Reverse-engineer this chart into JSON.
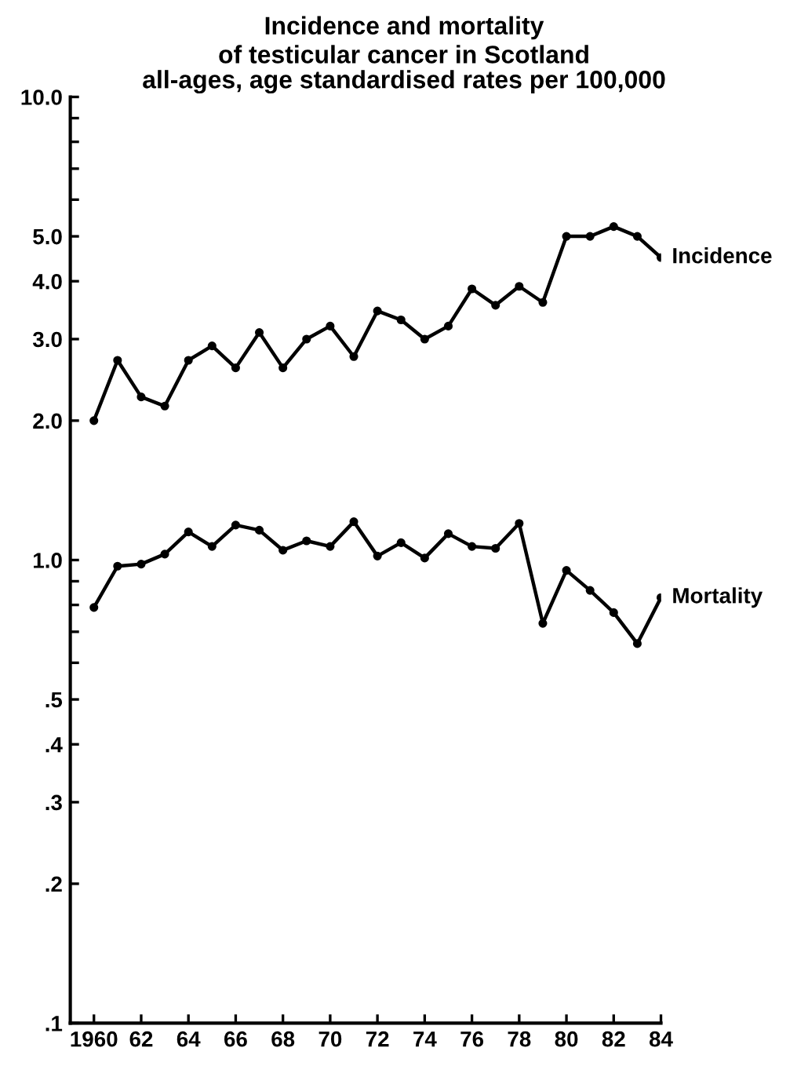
{
  "chart_data": {
    "type": "line",
    "title": "Incidence and mortality\nof testicular cancer in Scotland",
    "subtitle": "all-ages, age standardised rates per 100,000",
    "x": [
      1960,
      1961,
      1962,
      1963,
      1964,
      1965,
      1966,
      1967,
      1968,
      1969,
      1970,
      1971,
      1972,
      1973,
      1974,
      1975,
      1976,
      1977,
      1978,
      1979,
      1980,
      1981,
      1982,
      1983,
      1984
    ],
    "series": [
      {
        "name": "Incidence",
        "color": "#000000",
        "values": [
          2.0,
          2.7,
          2.25,
          2.15,
          2.7,
          2.9,
          2.6,
          3.1,
          2.6,
          3.0,
          3.2,
          2.75,
          3.45,
          3.3,
          3.0,
          3.2,
          3.85,
          3.55,
          3.9,
          3.6,
          5.0,
          5.0,
          5.25,
          5.0,
          4.5
        ]
      },
      {
        "name": "Mortality",
        "color": "#000000",
        "values": [
          0.79,
          0.97,
          0.98,
          1.03,
          1.15,
          1.07,
          1.19,
          1.16,
          1.05,
          1.1,
          1.07,
          1.21,
          1.02,
          1.09,
          1.01,
          1.14,
          1.07,
          1.06,
          1.2,
          0.73,
          0.95,
          0.86,
          0.77,
          0.66,
          0.83
        ]
      }
    ],
    "log": "y",
    "ylim": [
      0.1,
      10
    ],
    "xlim": [
      1959,
      1984
    ],
    "yticks": [
      {
        "value": 10,
        "label": "10.0"
      },
      {
        "value": 9,
        "label": null
      },
      {
        "value": 8,
        "label": null
      },
      {
        "value": 7,
        "label": null
      },
      {
        "value": 6,
        "label": null
      },
      {
        "value": 5,
        "label": "5.0"
      },
      {
        "value": 4,
        "label": "4.0"
      },
      {
        "value": 3,
        "label": "3.0"
      },
      {
        "value": 2,
        "label": "2.0"
      },
      {
        "value": 1,
        "label": "1.0"
      },
      {
        "value": 0.9,
        "label": null
      },
      {
        "value": 0.8,
        "label": null
      },
      {
        "value": 0.7,
        "label": null
      },
      {
        "value": 0.6,
        "label": null
      },
      {
        "value": 0.5,
        "label": ".5"
      },
      {
        "value": 0.4,
        "label": ".4"
      },
      {
        "value": 0.3,
        "label": ".3"
      },
      {
        "value": 0.2,
        "label": ".2"
      },
      {
        "value": 0.1,
        "label": ".1"
      }
    ],
    "xticks": [
      1960,
      {
        "value": 1962,
        "label": "62"
      },
      {
        "value": 1964,
        "label": "64"
      },
      {
        "value": 1966,
        "label": "66"
      },
      {
        "value": 1968,
        "label": "68"
      },
      {
        "value": 1970,
        "label": "70"
      },
      {
        "value": 1972,
        "label": "72"
      },
      {
        "value": 1974,
        "label": "74"
      },
      {
        "value": 1976,
        "label": "76"
      },
      {
        "value": 1978,
        "label": "78"
      },
      {
        "value": 1980,
        "label": "80"
      },
      {
        "value": 1982,
        "label": "82"
      },
      {
        "value": 1984,
        "label": "84"
      }
    ],
    "marker": "circle",
    "line_style": "solid",
    "grid": false,
    "legend": false
  }
}
